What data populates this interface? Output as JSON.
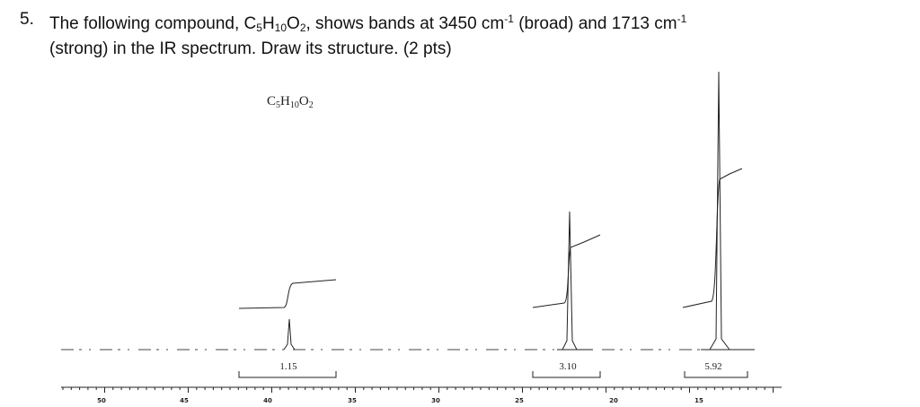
{
  "question": {
    "number": "5.",
    "line1": [
      "The following compound, C",
      "5",
      "H",
      "10",
      "O",
      "2",
      ", shows bands at 3450 cm",
      "-1",
      " (broad) and 1713 cm",
      "-1"
    ],
    "line2": "(strong) in the IR spectrum. Draw its structure. (2 pts)"
  },
  "spectrum": {
    "formula": [
      "C",
      "5",
      "H",
      "10",
      "O",
      "2"
    ],
    "integrations": [
      "1.15",
      "3.10",
      "5.92"
    ],
    "axis_labels": [
      "50",
      "45",
      "40",
      "35",
      "30",
      "25",
      "20",
      "15"
    ]
  }
}
